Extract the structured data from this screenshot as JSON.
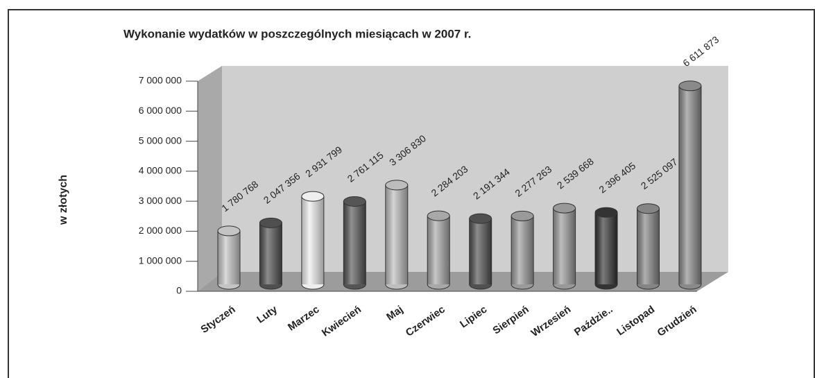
{
  "chart_data": {
    "type": "bar",
    "title": "Wykonanie wydatków w poszczególnych miesiącach w  2007 r.",
    "y_label": "w złotych",
    "categories": [
      "Styczeń",
      "Luty",
      "Marzec",
      "Kwiecień",
      "Maj",
      "Czerwiec",
      "Lipiec",
      "Sierpień",
      "Wrzesień",
      "Paździe..",
      "Listopad",
      "Grudzień"
    ],
    "values": [
      1780768,
      2047356,
      2931799,
      2761115,
      3306830,
      2284203,
      2191344,
      2277263,
      2539668,
      2396405,
      2525097,
      6611873
    ],
    "value_labels": [
      "1 780 768",
      "2 047 356",
      "2 931 799",
      "2 761 115",
      "3 306 830",
      "2 284 203",
      "2 191 344",
      "2 277 263",
      "2 539 668",
      "2 396 405",
      "2 525 097",
      "6 611 873"
    ],
    "colors": [
      "#c4c4c4",
      "#4f4f4f",
      "#eeeeee",
      "#555555",
      "#bdbdbd",
      "#a8a8a8",
      "#505050",
      "#9a9a9a",
      "#999999",
      "#333333",
      "#858585",
      "#8a8a8a"
    ],
    "ylim": [
      0,
      7000000
    ],
    "yticks": [
      {
        "value": 0,
        "label": "0"
      },
      {
        "value": 1000000,
        "label": "1 000 000"
      },
      {
        "value": 2000000,
        "label": "2 000 000"
      },
      {
        "value": 3000000,
        "label": "3 000 000"
      },
      {
        "value": 4000000,
        "label": "4 000 000"
      },
      {
        "value": 5000000,
        "label": "5 000 000"
      },
      {
        "value": 6000000,
        "label": "6 000 000"
      },
      {
        "value": 7000000,
        "label": "7 000 000"
      }
    ],
    "grid": false
  }
}
